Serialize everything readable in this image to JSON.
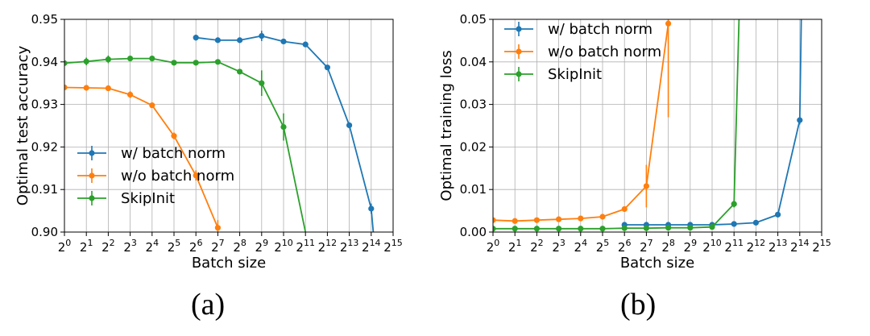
{
  "chart_data": [
    {
      "type": "line",
      "caption": "(a)",
      "xlabel": "Batch size",
      "ylabel": "Optimal test accuracy",
      "x_scale": "log2",
      "x_ticks": [
        1,
        2,
        4,
        8,
        16,
        32,
        64,
        128,
        256,
        512,
        1024,
        2048,
        4096,
        8192,
        16384,
        32768
      ],
      "x_tick_labels": [
        "2^0",
        "2^1",
        "2^2",
        "2^3",
        "2^4",
        "2^5",
        "2^6",
        "2^7",
        "2^8",
        "2^9",
        "2^10",
        "2^11",
        "2^12",
        "2^13",
        "2^14",
        "2^15"
      ],
      "xlim": [
        1,
        32768
      ],
      "ylim": [
        0.9,
        0.95
      ],
      "y_ticks": [
        0.9,
        0.91,
        0.92,
        0.93,
        0.94,
        0.95
      ],
      "y_tick_labels": [
        "0.90",
        "0.91",
        "0.92",
        "0.93",
        "0.94",
        "0.95"
      ],
      "grid": true,
      "legend_position": "lower-left",
      "series": [
        {
          "name": "w/ batch norm",
          "color": "#1f77b4",
          "x": [
            64,
            128,
            256,
            512,
            1024,
            2048,
            4096,
            8192,
            16384
          ],
          "y": [
            0.9457,
            0.9451,
            0.9451,
            0.9461,
            0.9448,
            0.9441,
            0.9387,
            0.9251,
            0.9055
          ],
          "err": [
            0.0007,
            0.0004,
            0.0004,
            0.0012,
            0.0004,
            0.0005,
            0.0005,
            0.0004,
            0.0012
          ],
          "tail": [
            {
              "x": 17500,
              "y": 0.9
            }
          ]
        },
        {
          "name": "w/o batch norm",
          "color": "#ff7f0e",
          "x": [
            1,
            2,
            4,
            8,
            16,
            32,
            64,
            128
          ],
          "y": [
            0.934,
            0.9339,
            0.9338,
            0.9323,
            0.9298,
            0.9226,
            0.9133,
            0.901
          ],
          "err": [
            0.0003,
            0.0004,
            0.0006,
            0.0008,
            0.0004,
            0.0008,
            0.0012,
            0.0018
          ]
        },
        {
          "name": "SkipInit",
          "color": "#2ca02c",
          "x": [
            1,
            2,
            4,
            8,
            16,
            32,
            64,
            128,
            256,
            512,
            1024
          ],
          "y": [
            0.9397,
            0.9401,
            0.9406,
            0.9408,
            0.9408,
            0.9398,
            0.9398,
            0.94,
            0.9377,
            0.935,
            0.9247
          ],
          "err": [
            0.0004,
            0.0009,
            0.0009,
            0.0006,
            0.0006,
            0.0004,
            0.0004,
            0.0006,
            0.0004,
            0.003,
            0.0032
          ],
          "tail": [
            {
              "x": 2048,
              "y": 0.9
            }
          ]
        }
      ]
    },
    {
      "type": "line",
      "caption": "(b)",
      "xlabel": "Batch size",
      "ylabel": "Optimal training loss",
      "x_scale": "log2",
      "x_ticks": [
        1,
        2,
        4,
        8,
        16,
        32,
        64,
        128,
        256,
        512,
        1024,
        2048,
        4096,
        8192,
        16384,
        32768
      ],
      "x_tick_labels": [
        "2^0",
        "2^1",
        "2^2",
        "2^3",
        "2^4",
        "2^5",
        "2^6",
        "2^7",
        "2^8",
        "2^9",
        "2^10",
        "2^11",
        "2^12",
        "2^13",
        "2^14",
        "2^15"
      ],
      "xlim": [
        1,
        32768
      ],
      "ylim": [
        0.0,
        0.05
      ],
      "y_ticks": [
        0.0,
        0.01,
        0.02,
        0.03,
        0.04,
        0.05
      ],
      "y_tick_labels": [
        "0.00",
        "0.01",
        "0.02",
        "0.03",
        "0.04",
        "0.05"
      ],
      "grid": true,
      "legend_position": "upper-left",
      "series": [
        {
          "name": "w/ batch norm",
          "color": "#1f77b4",
          "x": [
            64,
            128,
            256,
            512,
            1024,
            2048,
            4096,
            8192,
            16384
          ],
          "y": [
            0.0017,
            0.0017,
            0.0017,
            0.0017,
            0.0017,
            0.0019,
            0.0022,
            0.0041,
            0.0263
          ],
          "err": [
            0.0002,
            0.0002,
            0.0002,
            0.0002,
            0.0002,
            0.0002,
            0.0002,
            0.0003,
            0.001
          ],
          "tail": [
            {
              "x": 17200,
              "y": 0.05
            }
          ]
        },
        {
          "name": "w/o batch norm",
          "color": "#ff7f0e",
          "x": [
            1,
            2,
            4,
            8,
            16,
            32,
            64,
            128,
            256
          ],
          "y": [
            0.0028,
            0.0026,
            0.0028,
            0.003,
            0.0032,
            0.0036,
            0.0054,
            0.0108,
            0.049
          ],
          "err": [
            0.0002,
            0.0002,
            0.0002,
            0.0002,
            0.0003,
            0.0003,
            0.0004,
            0.005,
            0.022
          ]
        },
        {
          "name": "SkipInit",
          "color": "#2ca02c",
          "x": [
            1,
            2,
            4,
            8,
            16,
            32,
            64,
            128,
            256,
            512,
            1024,
            2048
          ],
          "y": [
            0.0008,
            0.0008,
            0.0008,
            0.0008,
            0.0008,
            0.0008,
            0.0009,
            0.0009,
            0.001,
            0.001,
            0.0012,
            0.0066
          ],
          "err": [
            0.0001,
            0.0001,
            0.0001,
            0.0001,
            0.0001,
            0.0001,
            0.0001,
            0.0001,
            0.0001,
            0.0001,
            0.0001,
            0.0008
          ],
          "tail": [
            {
              "x": 2400,
              "y": 0.05
            }
          ]
        }
      ]
    }
  ]
}
